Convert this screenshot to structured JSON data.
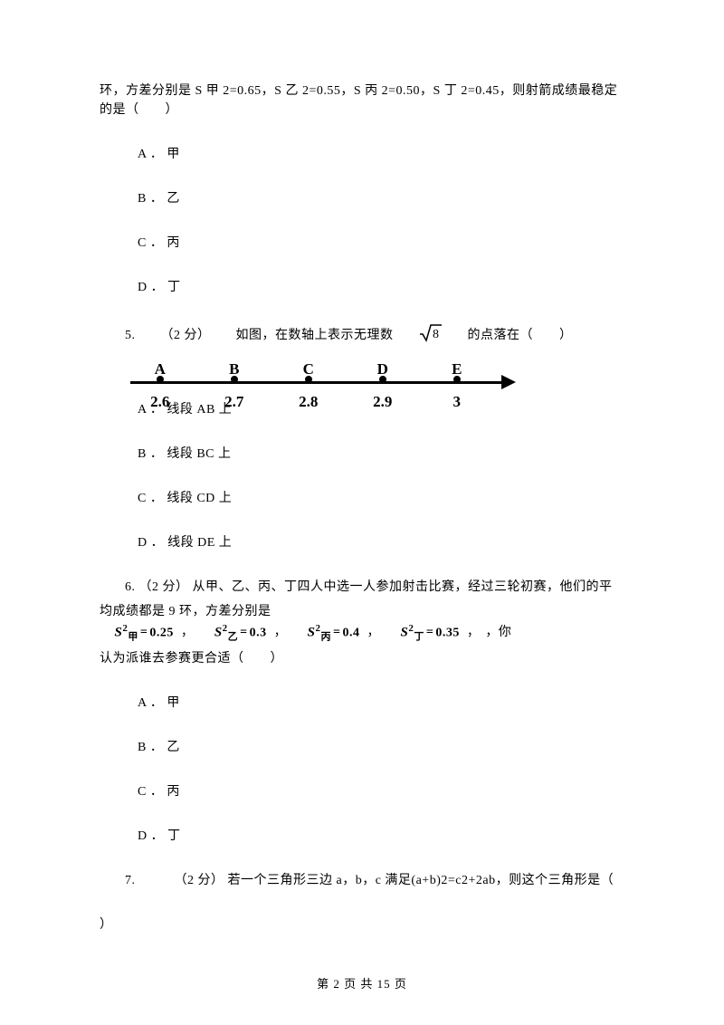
{
  "q4": {
    "para1_a": "环，方差分别是 S 甲 2=0.65，S 乙 2=0.55，S 丙 2=0.50，S 丁 2=0.45，则射箭成绩最稳定",
    "para1_b": "的是（　　）",
    "options": {
      "A": "A ． 甲",
      "B": "B ． 乙",
      "C": "C ． 丙",
      "D": "D ． 丁"
    }
  },
  "q5": {
    "num": "5. ",
    "pts": "（2 分）",
    "text_a": "如图，在数轴上表示无理数 ",
    "sqrt_val": "8",
    "text_b": " 的点落在（　　）",
    "numberline": {
      "labels_top": [
        "A",
        "B",
        "C",
        "D",
        "E"
      ],
      "labels_bottom": [
        "2.6",
        "2.7",
        "2.8",
        "2.9",
        "3"
      ],
      "positions_pct": [
        8,
        28,
        48,
        68,
        88
      ]
    },
    "options": {
      "A": "A ． 线段 AB 上",
      "B": "B ． 线段 BC 上",
      "C": "C ． 线段 CD 上",
      "D": "D ． 线段 DE 上"
    }
  },
  "q6": {
    "num": "6. ",
    "pts": "（2 分）",
    "text_a": "从甲、乙、丙、丁四人中选一人参加射击比赛，经过三轮初赛，他们的平",
    "line2_a": "均成绩都是 9 环，方差分别是",
    "variances": [
      {
        "sub": "甲",
        "val": "0.25"
      },
      {
        "sub": "乙",
        "val": "0.3"
      },
      {
        "sub": "丙",
        "val": "0.4"
      },
      {
        "sub": "丁",
        "val": "0.35"
      }
    ],
    "line2_b": "，你",
    "line3": "认为派谁去参赛更合适（　　）",
    "options": {
      "A": "A ． 甲",
      "B": "B ． 乙",
      "C": "C ． 丙",
      "D": "D ． 丁"
    }
  },
  "q7": {
    "num": "7. ",
    "pts": "（2 分）",
    "text_a": "若一个三角形三边 a，b，c 满足(a+b)2=c2+2ab，则这个三角形是（",
    "text_b": "）"
  },
  "footer": "第 2 页 共 15 页"
}
